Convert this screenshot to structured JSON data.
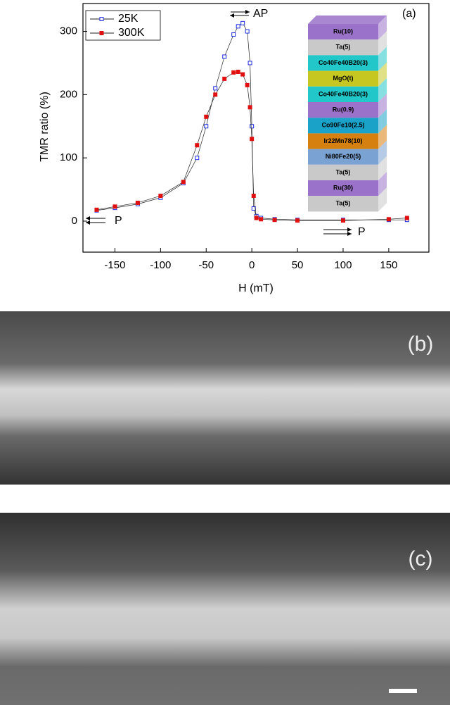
{
  "chart_data": {
    "type": "line",
    "x_label": "H (mT)",
    "y_label": "TMR ratio (%)",
    "x": [
      -170,
      -150,
      -125,
      -100,
      -75,
      -60,
      -50,
      -40,
      -30,
      -20,
      -15,
      -10,
      -5,
      -2,
      0,
      2,
      5,
      10,
      25,
      50,
      100,
      150,
      170
    ],
    "series": [
      {
        "name": "25K",
        "color": "#1f2fe0",
        "marker": "open-square",
        "values": [
          17,
          21,
          27,
          37,
          60,
          100,
          150,
          210,
          260,
          295,
          308,
          313,
          300,
          250,
          150,
          20,
          8,
          5,
          3,
          2,
          2,
          2,
          2
        ]
      },
      {
        "name": "300K",
        "color": "#e01010",
        "marker": "filled-square",
        "values": [
          18,
          23,
          29,
          40,
          62,
          120,
          165,
          200,
          225,
          235,
          236,
          232,
          215,
          180,
          130,
          40,
          5,
          3,
          2,
          1,
          1,
          3,
          5
        ]
      }
    ],
    "xlim": [
      -185,
      194
    ],
    "ylim": [
      -49,
      344
    ],
    "xticks": [
      -150,
      -100,
      -50,
      0,
      50,
      100,
      150
    ],
    "yticks": [
      0,
      100,
      200,
      300
    ],
    "legend": "upper left",
    "annotations": [
      "AP",
      "P",
      "P",
      "(a)"
    ],
    "layers": [
      {
        "label": "Ru(10)",
        "color": "#9b72c9"
      },
      {
        "label": "Ta(5)",
        "color": "#c9c9c9"
      },
      {
        "label": "Co40Fe40B20(3)",
        "color": "#22c7c9"
      },
      {
        "label": "MgO(t)",
        "color": "#c7c722"
      },
      {
        "label": "Co40Fe40B20(3)",
        "color": "#22c7c9"
      },
      {
        "label": "Ru(0.9)",
        "color": "#9b72c9"
      },
      {
        "label": "Co90Fe10(2.5)",
        "color": "#1aa2c9"
      },
      {
        "label": "Ir22Mn78(10)",
        "color": "#d6800f"
      },
      {
        "label": "Ni80Fe20(5)",
        "color": "#7aa2d2"
      },
      {
        "label": "Ta(5)",
        "color": "#c9c9c9"
      },
      {
        "label": "Ru(30)",
        "color": "#9b72c9"
      },
      {
        "label": "Ta(5)",
        "color": "#c9c9c9"
      }
    ]
  },
  "panel_labels": [
    "(b)",
    "(c)"
  ]
}
